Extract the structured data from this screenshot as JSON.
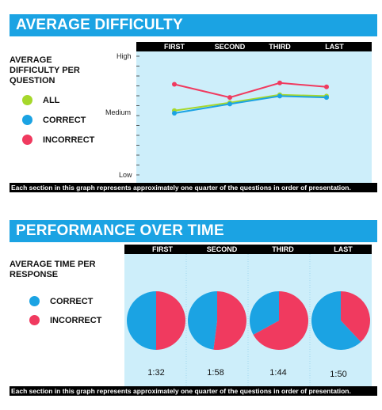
{
  "section1": {
    "title": "AVERAGE DIFFICULTY",
    "ylabel": "AVERAGE DIFFICULTY PER QUESTION",
    "y_high": "High",
    "y_medium": "Medium",
    "y_low": "Low",
    "legend": [
      {
        "label": "ALL",
        "color": "#a6d82b"
      },
      {
        "label": "CORRECT",
        "color": "#1ba3e3"
      },
      {
        "label": "INCORRECT",
        "color": "#f03a5f"
      }
    ],
    "note": "Each section in this graph represents approximately one quarter of the questions in order of presentation."
  },
  "section2": {
    "title": "PERFORMANCE OVER TIME",
    "ylabel": "AVERAGE TIME PER RESPONSE",
    "legend": [
      {
        "label": "CORRECT",
        "color": "#1ba3e3"
      },
      {
        "label": "INCORRECT",
        "color": "#f03a5f"
      }
    ],
    "times": [
      "1:32",
      "1:58",
      "1:44",
      "1:50"
    ],
    "note": "Each section in this graph represents approximately one quarter of the questions in order of presentation."
  },
  "quarters": [
    "FIRST",
    "SECOND",
    "THIRD",
    "LAST"
  ],
  "chart_data": [
    {
      "type": "line",
      "title": "AVERAGE DIFFICULTY",
      "categories": [
        "FIRST",
        "SECOND",
        "THIRD",
        "LAST"
      ],
      "ylim": [
        0,
        1
      ],
      "y_ticks": [
        "Low",
        "Medium",
        "High"
      ],
      "series": [
        {
          "name": "ALL",
          "color": "#a6d82b",
          "values": [
            0.55,
            0.61,
            0.67,
            0.66
          ]
        },
        {
          "name": "CORRECT",
          "color": "#1ba3e3",
          "values": [
            0.53,
            0.6,
            0.66,
            0.65
          ]
        },
        {
          "name": "INCORRECT",
          "color": "#f03a5f",
          "values": [
            0.75,
            0.65,
            0.76,
            0.73
          ]
        }
      ]
    },
    {
      "type": "pie",
      "title": "PERFORMANCE OVER TIME",
      "categories": [
        "FIRST",
        "SECOND",
        "THIRD",
        "LAST"
      ],
      "series": [
        {
          "name": "CORRECT",
          "color": "#1ba3e3",
          "values": [
            0.5,
            0.48,
            0.33,
            0.62
          ]
        },
        {
          "name": "INCORRECT",
          "color": "#f03a5f",
          "values": [
            0.5,
            0.52,
            0.67,
            0.38
          ]
        }
      ],
      "labels": [
        "1:32",
        "1:58",
        "1:44",
        "1:50"
      ]
    }
  ]
}
